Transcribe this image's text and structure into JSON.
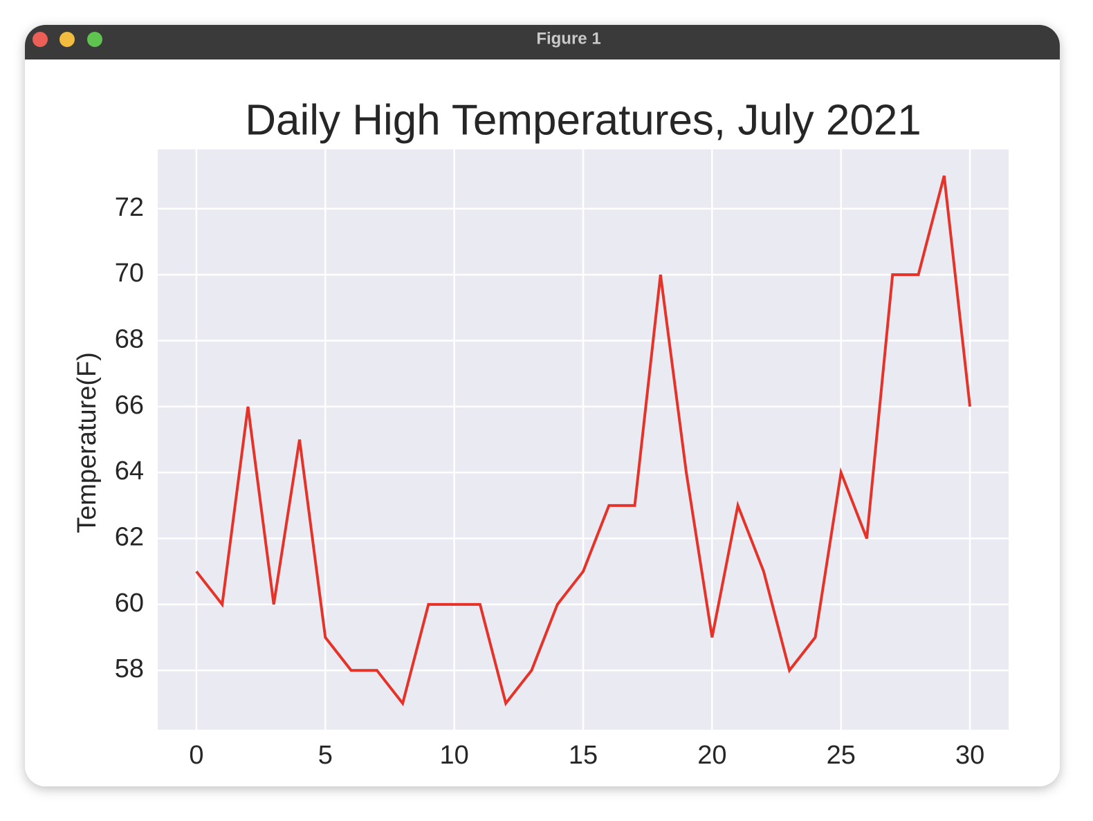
{
  "window": {
    "title": "Figure 1"
  },
  "chart_data": {
    "type": "line",
    "title": "Daily High Temperatures, July 2021",
    "ylabel": "Temperature(F)",
    "x": [
      0,
      1,
      2,
      3,
      4,
      5,
      6,
      7,
      8,
      9,
      10,
      11,
      12,
      13,
      14,
      15,
      16,
      17,
      18,
      19,
      20,
      21,
      22,
      23,
      24,
      25,
      26,
      27,
      28,
      29,
      30
    ],
    "series": [
      {
        "color": "#e5332a",
        "values": [
          61,
          60,
          66,
          60,
          65,
          59,
          58,
          58,
          57,
          60,
          60,
          60,
          57,
          58,
          60,
          61,
          63,
          63,
          70,
          64,
          59,
          63,
          61,
          58,
          59,
          64,
          62,
          70,
          70,
          73,
          66
        ]
      }
    ],
    "xlim": [
      -1.5,
      31.5
    ],
    "xticks": [
      0,
      5,
      10,
      15,
      20,
      25,
      30
    ],
    "ylim": [
      56.2,
      73.8
    ],
    "yticks": [
      58,
      60,
      62,
      64,
      66,
      68,
      70,
      72
    ],
    "grid": true,
    "background": "#eaeaf2"
  }
}
